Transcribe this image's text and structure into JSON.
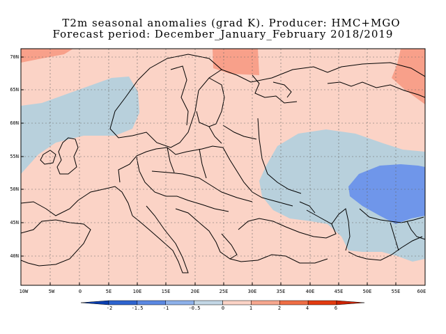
{
  "title_line1": "T2m seasonal anomalies (grad K). Producer: HMC+MGO",
  "title_line2": "Forecast period: December_January_February 2018/2019",
  "lon_labels": [
    "10W",
    "5W",
    "0",
    "5E",
    "10E",
    "15E",
    "20E",
    "25E",
    "30E",
    "35E",
    "40E",
    "45E",
    "50E",
    "55E",
    "60E"
  ],
  "lat_labels": [
    "70N",
    "65N",
    "60N",
    "55N",
    "50N",
    "45N",
    "40N"
  ],
  "colorbar_labels": [
    "-2",
    "-1.5",
    "-1",
    "-0.5",
    "0",
    "1",
    "2",
    "4",
    "6"
  ],
  "colors": {
    "bin_0_1": "#fbd3c6",
    "bin_1_2": "#f8a08a",
    "bin_neg05_0": "#b8d0dc",
    "bin_neg1_neg05": "#6f96ea",
    "colorbar": [
      "#0b3fb0",
      "#2e64cf",
      "#5b89e3",
      "#8eb1ea",
      "#c3d7e6",
      "#fbd3c6",
      "#f6a78f",
      "#ef6e45",
      "#e33b10",
      "#cc2200"
    ]
  }
}
